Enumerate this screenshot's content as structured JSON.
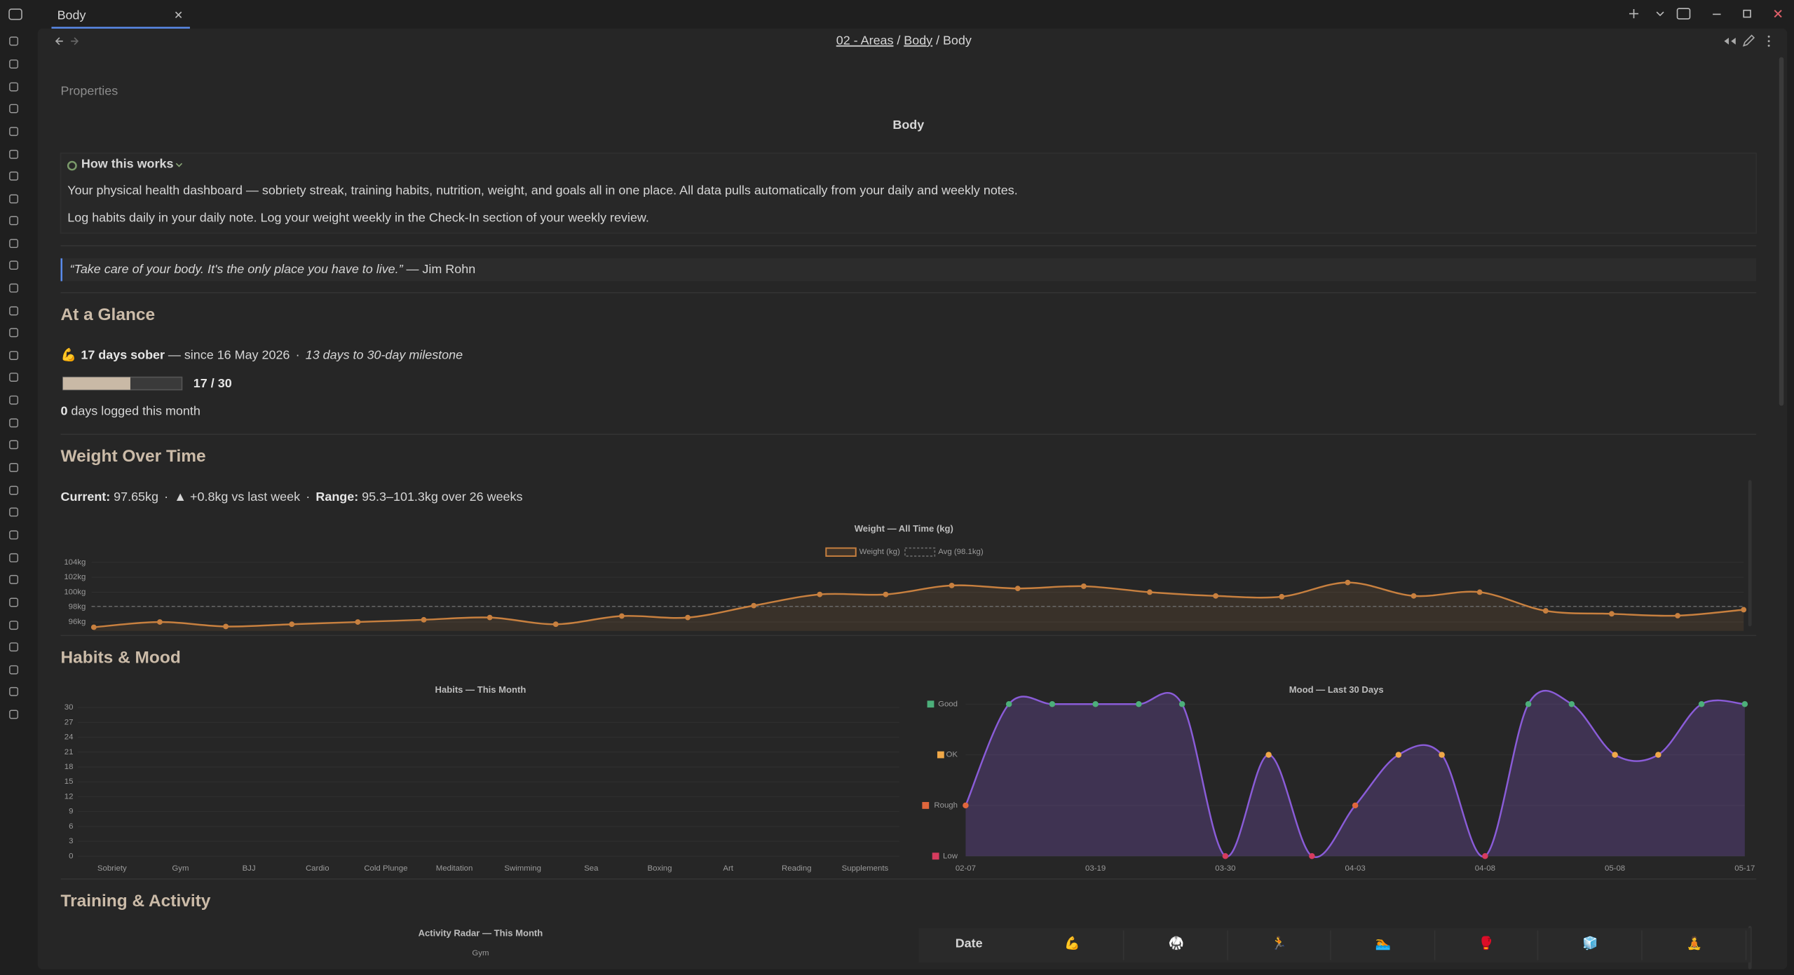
{
  "tab": {
    "title": "Body"
  },
  "breadcrumb": {
    "items": [
      "02 - Areas",
      "Body",
      "Body"
    ],
    "separator": "/"
  },
  "properties_label": "Properties",
  "title": "Body",
  "callout": {
    "title": "How this works",
    "paragraphs": [
      "Your physical health dashboard — sobriety streak, training habits, nutrition, weight, and goals all in one place. All data pulls automatically from your daily and weekly notes.",
      "Log habits daily in your daily note. Log your weight weekly in the Check-In section of your weekly review."
    ]
  },
  "quote": {
    "text": "“Take care of your body. It's the only place you have to live.”",
    "author": "— Jim Rohn"
  },
  "sections": [
    "At a Glance",
    "Weight Over Time",
    "Habits & Mood",
    "Training & Activity"
  ],
  "glance": {
    "emoji": "💪",
    "streak": "17 days sober",
    "since": "— since 16 May 2026",
    "separator": "·",
    "milestone": "13 days to 30-day milestone",
    "progress": {
      "value": 17,
      "max": 30,
      "label": "17 / 30"
    },
    "logged_count": "0",
    "logged_text": "days logged this month"
  },
  "weight_stats": {
    "current_label": "Current:",
    "current": "97.65kg",
    "separator": "·",
    "change": "▲ +0.8kg vs last week",
    "range_label": "Range:",
    "range": "95.3–101.3kg over 26 weeks"
  },
  "chart_data": [
    {
      "type": "line",
      "title": "Weight — All Time (kg)",
      "series": [
        {
          "name": "Weight (kg)",
          "color": "#c8803f",
          "values": [
            95.3,
            96.0,
            95.4,
            95.7,
            96.0,
            96.3,
            96.6,
            95.7,
            96.8,
            96.6,
            98.2,
            99.7,
            99.7,
            100.9,
            100.5,
            100.8,
            100.0,
            99.5,
            99.4,
            101.3,
            99.5,
            100.0,
            97.5,
            97.1,
            96.85,
            97.65
          ]
        }
      ],
      "average": {
        "name": "Avg (98.1kg)",
        "value": 98.1,
        "color": "#6a6a6a"
      },
      "ylim": [
        94.8,
        104
      ],
      "yticks": [
        {
          "value": 96,
          "label": "96kg"
        },
        {
          "value": 98,
          "label": "98kg"
        },
        {
          "value": 100,
          "label": "100kg"
        },
        {
          "value": 102,
          "label": "102kg"
        },
        {
          "value": 104,
          "label": "104kg"
        }
      ],
      "grid": true
    },
    {
      "type": "bar",
      "title": "Habits — This Month",
      "categories": [
        "Sobriety",
        "Gym",
        "BJJ",
        "Cardio",
        "Cold Plunge",
        "Meditation",
        "Swimming",
        "Sea",
        "Boxing",
        "Art",
        "Reading",
        "Supplements"
      ],
      "values": [
        0,
        0,
        0,
        0,
        0,
        0,
        0,
        0,
        0,
        0,
        0,
        0
      ],
      "color": "#c8803f",
      "ylim": [
        0,
        30
      ],
      "yticks": [
        0,
        3,
        6,
        9,
        12,
        15,
        18,
        21,
        24,
        27,
        30
      ],
      "grid": true
    },
    {
      "type": "line",
      "title": "Mood — Last 30 Days",
      "categories": [
        "02-07",
        null,
        null,
        "03-19",
        null,
        null,
        "03-30",
        null,
        null,
        "04-03",
        null,
        null,
        "04-08",
        null,
        null,
        "05-08",
        null,
        null,
        "05-17"
      ],
      "series": [
        {
          "color": "#8a5cd8",
          "values": [
            1,
            3,
            3,
            3,
            3,
            3,
            0,
            2,
            0,
            1,
            2,
            2,
            0,
            3,
            3,
            2,
            2,
            3,
            3
          ]
        }
      ],
      "ylim": [
        0,
        3
      ],
      "yticks": [
        {
          "value": 0,
          "label": "Low",
          "color": "#d63c5e"
        },
        {
          "value": 1,
          "label": "Rough",
          "color": "#e0663c"
        },
        {
          "value": 2,
          "label": "OK",
          "color": "#f0a848"
        },
        {
          "value": 3,
          "label": "Good",
          "color": "#4caf7a"
        }
      ],
      "grid": true
    }
  ],
  "activity_radar": {
    "title": "Activity Radar — This Month",
    "axis_labels": [
      "Gym"
    ]
  },
  "activity_table": {
    "header": [
      "Date",
      "💪",
      "🥋",
      "🏃",
      "🏊",
      "🥊",
      "🧊",
      "🧘"
    ]
  }
}
